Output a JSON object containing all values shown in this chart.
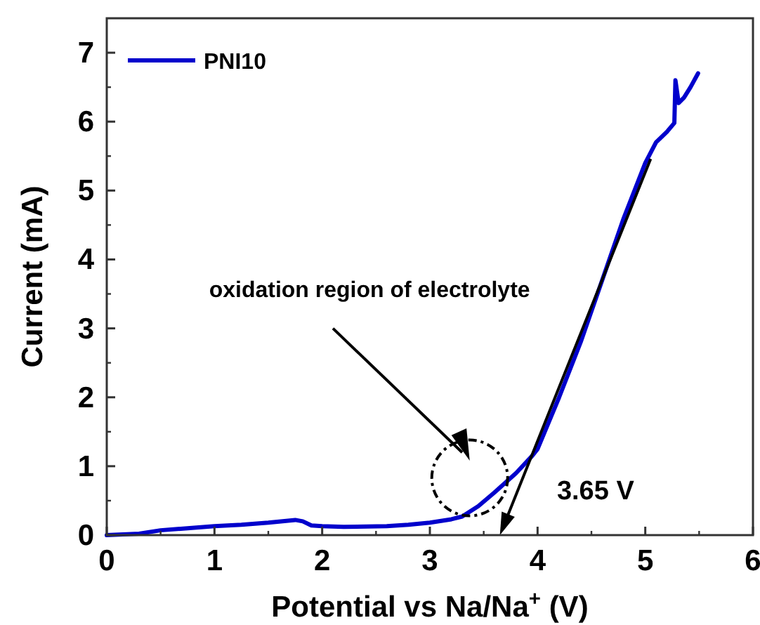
{
  "chart_data": {
    "type": "line",
    "xlabel": "Potential vs Na/Na$^{+}$ (V)",
    "ylabel": "Current (mA)",
    "xlim": [
      0,
      6
    ],
    "ylim": [
      0,
      7.5
    ],
    "xticks": [
      0,
      1,
      2,
      3,
      4,
      5,
      6
    ],
    "yticks": [
      0,
      1,
      2,
      3,
      4,
      5,
      6,
      7
    ],
    "legend": "top left",
    "grid": false,
    "series": [
      {
        "name": "PNI10",
        "color": "#0000cc",
        "x": [
          0,
          0.3,
          0.5,
          0.75,
          1.0,
          1.25,
          1.5,
          1.75,
          1.82,
          1.9,
          2.0,
          2.2,
          2.6,
          2.8,
          3.0,
          3.2,
          3.3,
          3.45,
          3.6,
          3.8,
          3.95,
          4.0,
          4.2,
          4.4,
          4.6,
          4.8,
          5.0,
          5.1,
          5.2,
          5.27,
          5.28,
          5.31,
          5.36,
          5.42,
          5.49
        ],
        "values": [
          0,
          0.02,
          0.07,
          0.1,
          0.13,
          0.15,
          0.18,
          0.22,
          0.2,
          0.14,
          0.13,
          0.12,
          0.13,
          0.15,
          0.18,
          0.23,
          0.27,
          0.42,
          0.62,
          0.9,
          1.15,
          1.25,
          2.0,
          2.8,
          3.7,
          4.6,
          5.4,
          5.7,
          5.85,
          5.98,
          6.6,
          6.27,
          6.35,
          6.5,
          6.7
        ]
      }
    ],
    "annotations": [
      "oxidation region of electrolyte",
      "3.65 V"
    ]
  }
}
